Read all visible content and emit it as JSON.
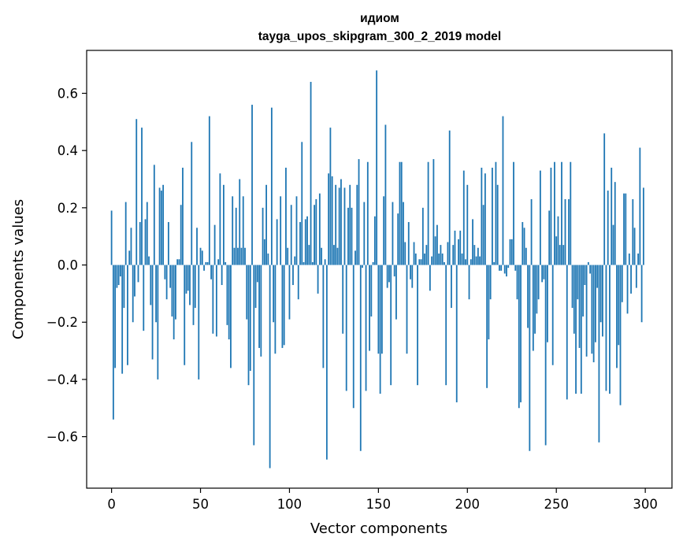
{
  "chart_data": {
    "type": "bar",
    "title": "идиом",
    "subtitle": "tayga_upos_skipgram_300_2_2019 model",
    "xlabel": "Vector components",
    "ylabel": "Components values",
    "xlim": [
      -14,
      315
    ],
    "ylim": [
      -0.78,
      0.75
    ],
    "xticks": [
      0,
      50,
      100,
      150,
      200,
      250,
      300
    ],
    "xtick_labels": [
      "0",
      "50",
      "100",
      "150",
      "200",
      "250",
      "300"
    ],
    "yticks": [
      -0.6,
      -0.4,
      -0.2,
      0.0,
      0.2,
      0.4,
      0.6
    ],
    "ytick_labels": [
      "−0.6",
      "−0.4",
      "−0.2",
      "0.0",
      "0.2",
      "0.4",
      "0.6"
    ],
    "bar_color": "#1f77b4",
    "categories_count": 300,
    "values": [
      0.19,
      -0.54,
      -0.36,
      -0.08,
      -0.07,
      -0.04,
      -0.38,
      -0.15,
      0.22,
      -0.35,
      0.05,
      0.13,
      -0.2,
      -0.11,
      0.51,
      -0.06,
      0.15,
      0.48,
      -0.23,
      0.16,
      0.22,
      0.03,
      -0.14,
      -0.33,
      0.35,
      -0.2,
      -0.4,
      0.27,
      0.26,
      0.28,
      -0.05,
      -0.12,
      0.15,
      -0.08,
      -0.18,
      -0.26,
      -0.19,
      0.02,
      0.02,
      0.21,
      0.34,
      -0.35,
      -0.1,
      -0.09,
      -0.14,
      0.43,
      -0.21,
      -0.15,
      0.13,
      -0.4,
      0.06,
      0.05,
      -0.02,
      0.01,
      0.01,
      0.52,
      -0.05,
      -0.24,
      0.14,
      -0.25,
      0.02,
      0.32,
      -0.07,
      0.28,
      0.01,
      -0.21,
      -0.26,
      -0.36,
      0.24,
      0.06,
      0.2,
      0.06,
      0.3,
      0.06,
      0.24,
      0.06,
      -0.19,
      -0.42,
      -0.37,
      0.56,
      -0.63,
      -0.15,
      -0.06,
      -0.29,
      -0.32,
      0.2,
      0.09,
      0.28,
      0.04,
      -0.71,
      0.55,
      -0.2,
      -0.31,
      0.16,
      0.0,
      0.24,
      -0.29,
      -0.28,
      0.34,
      0.06,
      -0.19,
      0.21,
      -0.07,
      0.03,
      0.24,
      -0.12,
      0.15,
      0.43,
      0.01,
      0.16,
      0.17,
      0.07,
      0.64,
      0.01,
      0.21,
      0.23,
      -0.1,
      0.25,
      0.06,
      -0.36,
      0.02,
      -0.68,
      0.32,
      0.48,
      0.31,
      0.07,
      0.28,
      0.06,
      0.27,
      0.3,
      -0.24,
      0.27,
      -0.44,
      0.2,
      0.28,
      0.2,
      -0.5,
      0.05,
      0.28,
      0.37,
      -0.65,
      -0.01,
      0.22,
      -0.44,
      0.36,
      -0.3,
      -0.18,
      0.01,
      0.17,
      0.68,
      -0.31,
      -0.45,
      -0.31,
      0.24,
      0.49,
      -0.08,
      -0.06,
      -0.42,
      0.22,
      -0.04,
      -0.19,
      0.18,
      0.36,
      0.36,
      0.22,
      0.08,
      -0.31,
      0.15,
      -0.05,
      -0.08,
      0.08,
      0.04,
      -0.42,
      0.02,
      0.02,
      0.2,
      0.04,
      0.07,
      0.36,
      -0.09,
      0.03,
      0.37,
      0.1,
      0.14,
      0.04,
      0.07,
      0.04,
      0.01,
      -0.42,
      0.08,
      0.47,
      -0.15,
      0.07,
      0.12,
      -0.48,
      0.09,
      0.12,
      0.04,
      0.33,
      0.02,
      0.28,
      -0.12,
      0.02,
      0.16,
      0.07,
      0.03,
      0.06,
      0.03,
      0.34,
      0.21,
      0.32,
      -0.43,
      -0.26,
      -0.12,
      0.34,
      0.01,
      0.36,
      0.28,
      -0.02,
      -0.02,
      0.52,
      -0.03,
      -0.04,
      -0.01,
      0.09,
      0.09,
      0.36,
      -0.02,
      -0.12,
      -0.5,
      -0.48,
      0.15,
      0.13,
      0.06,
      -0.22,
      -0.65,
      0.23,
      -0.3,
      -0.24,
      -0.17,
      -0.12,
      0.33,
      -0.06,
      -0.05,
      -0.63,
      -0.27,
      0.19,
      0.34,
      -0.35,
      0.36,
      0.1,
      0.17,
      0.07,
      0.36,
      0.07,
      0.23,
      -0.47,
      0.23,
      0.36,
      -0.15,
      -0.24,
      -0.45,
      -0.12,
      -0.29,
      -0.45,
      -0.18,
      -0.07,
      -0.32,
      0.01,
      -0.03,
      -0.31,
      -0.34,
      -0.27,
      -0.08,
      -0.62,
      -0.2,
      -0.25,
      0.46,
      -0.44,
      0.26,
      -0.45,
      0.34,
      0.14,
      0.29,
      -0.36,
      -0.28,
      -0.49,
      -0.13,
      0.25,
      0.25,
      -0.17,
      0.04,
      -0.1,
      0.23,
      0.13,
      -0.08,
      0.04,
      0.41,
      -0.2,
      0.27
    ]
  }
}
